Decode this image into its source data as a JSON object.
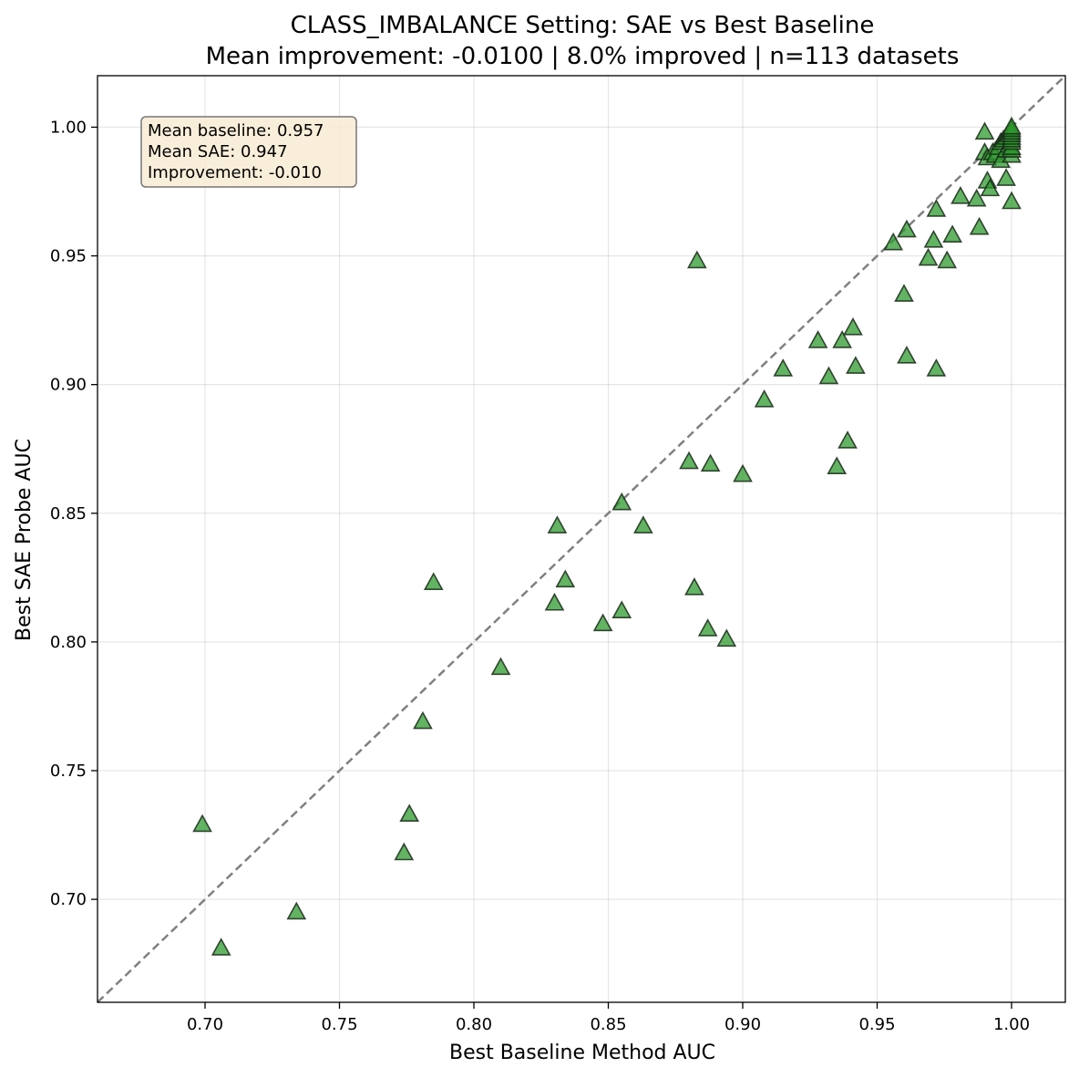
{
  "chart_data": {
    "type": "scatter",
    "title": "CLASS_IMBALANCE Setting: SAE vs Best Baseline",
    "subtitle": "Mean improvement: -0.0100 | 8.0% improved | n=113 datasets",
    "xlabel": "Best Baseline Method AUC",
    "ylabel": "Best SAE Probe AUC",
    "xlim": [
      0.66,
      1.02
    ],
    "ylim": [
      0.66,
      1.02
    ],
    "xticks": [
      "0.70",
      "0.75",
      "0.80",
      "0.85",
      "0.90",
      "0.95",
      "1.00"
    ],
    "yticks": [
      "0.70",
      "0.75",
      "0.80",
      "0.85",
      "0.90",
      "0.95",
      "1.00"
    ],
    "grid": true,
    "diagonal_reference_line": true,
    "marker": "triangle-up",
    "marker_color": "#2e9a2e",
    "annotation": [
      "Mean baseline: 0.957",
      "Mean SAE: 0.947",
      "Improvement: -0.010"
    ],
    "points": [
      [
        0.699,
        0.729
      ],
      [
        0.706,
        0.681
      ],
      [
        0.734,
        0.695
      ],
      [
        0.774,
        0.718
      ],
      [
        0.776,
        0.733
      ],
      [
        0.781,
        0.769
      ],
      [
        0.785,
        0.823
      ],
      [
        0.81,
        0.79
      ],
      [
        0.83,
        0.815
      ],
      [
        0.831,
        0.845
      ],
      [
        0.834,
        0.824
      ],
      [
        0.848,
        0.807
      ],
      [
        0.855,
        0.812
      ],
      [
        0.855,
        0.854
      ],
      [
        0.863,
        0.845
      ],
      [
        0.88,
        0.87
      ],
      [
        0.882,
        0.821
      ],
      [
        0.883,
        0.948
      ],
      [
        0.887,
        0.805
      ],
      [
        0.888,
        0.869
      ],
      [
        0.894,
        0.801
      ],
      [
        0.9,
        0.865
      ],
      [
        0.908,
        0.894
      ],
      [
        0.915,
        0.906
      ],
      [
        0.928,
        0.917
      ],
      [
        0.932,
        0.903
      ],
      [
        0.935,
        0.868
      ],
      [
        0.937,
        0.917
      ],
      [
        0.939,
        0.878
      ],
      [
        0.941,
        0.922
      ],
      [
        0.942,
        0.907
      ],
      [
        0.956,
        0.955
      ],
      [
        0.96,
        0.935
      ],
      [
        0.961,
        0.911
      ],
      [
        0.961,
        0.96
      ],
      [
        0.969,
        0.949
      ],
      [
        0.971,
        0.956
      ],
      [
        0.972,
        0.968
      ],
      [
        0.972,
        0.906
      ],
      [
        0.976,
        0.948
      ],
      [
        0.978,
        0.958
      ],
      [
        0.981,
        0.973
      ],
      [
        0.987,
        0.972
      ],
      [
        0.988,
        0.961
      ],
      [
        0.99,
        0.998
      ],
      [
        0.99,
        0.99
      ],
      [
        0.991,
        0.979
      ],
      [
        0.991,
        0.988
      ],
      [
        0.992,
        0.976
      ],
      [
        0.993,
        0.99
      ],
      [
        0.994,
        0.989
      ],
      [
        0.995,
        0.992
      ],
      [
        0.996,
        0.987
      ],
      [
        0.996,
        0.994
      ],
      [
        0.997,
        0.995
      ],
      [
        0.998,
        0.98
      ],
      [
        0.998,
        0.991
      ],
      [
        0.998,
        0.996
      ],
      [
        0.999,
        0.993
      ],
      [
        0.999,
        0.997
      ],
      [
        1.0,
        0.971
      ],
      [
        1.0,
        0.989
      ],
      [
        1.0,
        0.991
      ],
      [
        1.0,
        0.992
      ],
      [
        1.0,
        0.994
      ],
      [
        1.0,
        0.995
      ],
      [
        1.0,
        0.996
      ],
      [
        1.0,
        0.997
      ],
      [
        1.0,
        0.998
      ],
      [
        1.0,
        0.999
      ],
      [
        1.0,
        1.0
      ]
    ]
  }
}
